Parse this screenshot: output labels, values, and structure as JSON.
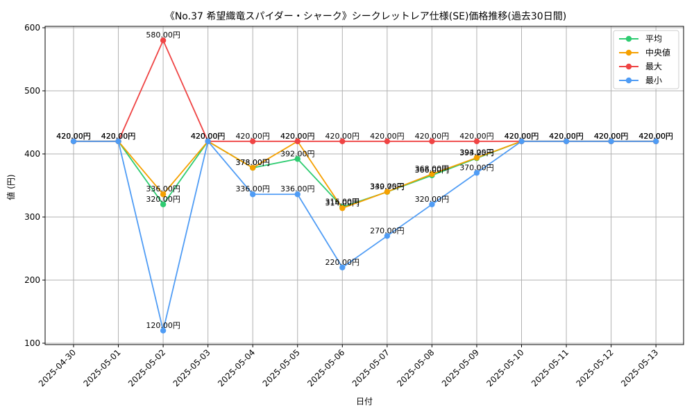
{
  "chart_data": {
    "type": "line",
    "title": "《No.37 希望織竜スパイダー・シャーク》シークレットレア仕様(SE)価格推移(過去30日間)",
    "xlabel": "日付",
    "ylabel": "値 (円)",
    "categories": [
      "2025-04-30",
      "2025-05-01",
      "2025-05-02",
      "2025-05-03",
      "2025-05-04",
      "2025-05-05",
      "2025-05-06",
      "2025-05-07",
      "2025-05-08",
      "2025-05-09",
      "2025-05-10",
      "2025-05-11",
      "2025-05-12",
      "2025-05-13"
    ],
    "ylim": [
      100,
      600
    ],
    "yticks": [
      100,
      200,
      300,
      400,
      500,
      600
    ],
    "grid": true,
    "legend_position": "top-right",
    "series": [
      {
        "name": "平均",
        "color": "#2ecc71",
        "values": [
          420,
          420,
          320,
          420,
          378,
          392,
          316,
          339.75,
          366,
          393.25,
          420,
          420,
          420,
          420
        ],
        "labels": [
          "420.00円",
          "420.00円",
          "320.00円",
          "420.00円",
          "378.00円",
          "392.00円",
          "316.00円",
          "339.75円",
          "366.00円",
          "393.25円",
          "420.00円",
          "420.00円",
          "420.00円",
          "420.00円"
        ]
      },
      {
        "name": "中央値",
        "color": "#f5a000",
        "values": [
          420,
          420,
          336,
          420,
          378,
          420,
          314,
          340,
          368,
          394,
          420,
          420,
          420,
          420
        ],
        "labels": [
          "420.00円",
          "420.00円",
          "336.00円",
          "420.00円",
          "378.00円",
          "420.00円",
          "314.00円",
          "340.00円",
          "368.00円",
          "394.00円",
          "420.00円",
          "420.00円",
          "420.00円",
          "420.00円"
        ]
      },
      {
        "name": "最大",
        "color": "#ef4444",
        "values": [
          420,
          420,
          580,
          420,
          420,
          420,
          420,
          420,
          420,
          420,
          420,
          420,
          420,
          420
        ],
        "labels": [
          "420.00円",
          "420.00円",
          "580.00円",
          "420.00円",
          "420.00円",
          "420.00円",
          "420.00円",
          "420.00円",
          "420.00円",
          "420.00円",
          "420.00円",
          "420.00円",
          "420.00円",
          "420.00円"
        ]
      },
      {
        "name": "最小",
        "color": "#4f9cf5",
        "values": [
          420,
          420,
          120,
          420,
          336,
          336,
          220,
          270,
          320,
          370,
          420,
          420,
          420,
          420
        ],
        "labels": [
          "420.00円",
          "420.00円",
          "120.00円",
          "420.00円",
          "336.00円",
          "336.00円",
          "220.00円",
          "270.00円",
          "320.00円",
          "370.00円",
          "420.00円",
          "420.00円",
          "420.00円",
          "420.00円"
        ]
      }
    ]
  }
}
